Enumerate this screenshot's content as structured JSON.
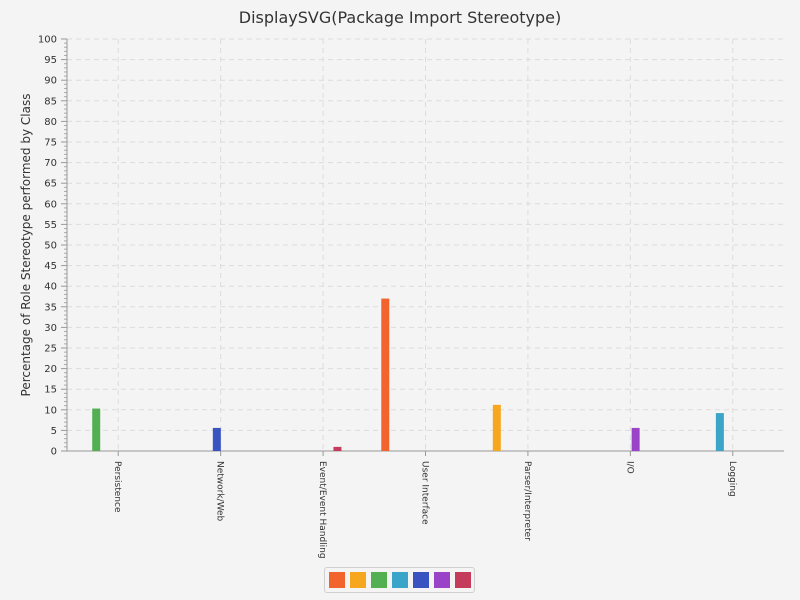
{
  "chart_data": {
    "type": "bar",
    "title": "DisplaySVG(Package Import Stereotype)",
    "xlabel": "",
    "ylabel": "Percentage of Role Stereotype performed by Class",
    "ylim": [
      0,
      100
    ],
    "ytick_step": 5,
    "grid": true,
    "legend": "bottom",
    "categories": [
      "Persistence",
      "Network/Web",
      "Event/Event Handling",
      "User Interface",
      "Parser/Interpreter",
      "I/O",
      "Logging"
    ],
    "series": [
      {
        "color": "#f2632e",
        "values": [
          0,
          0,
          0,
          37,
          0,
          0,
          0
        ]
      },
      {
        "color": "#f6a71d",
        "values": [
          0,
          0,
          0,
          0,
          11.2,
          0,
          0
        ]
      },
      {
        "color": "#52b052",
        "values": [
          10.3,
          0,
          0,
          0,
          0,
          0,
          0
        ]
      },
      {
        "color": "#3aa5c9",
        "values": [
          0,
          0,
          0,
          0,
          0,
          0,
          9.2
        ]
      },
      {
        "color": "#3954c1",
        "values": [
          0,
          5.6,
          0,
          0,
          0,
          0,
          0
        ]
      },
      {
        "color": "#9b43c8",
        "values": [
          0,
          0,
          0,
          0,
          0,
          5.6,
          0
        ]
      },
      {
        "color": "#c43b5b",
        "values": [
          0,
          0,
          1,
          0,
          0,
          0,
          0
        ]
      }
    ]
  }
}
